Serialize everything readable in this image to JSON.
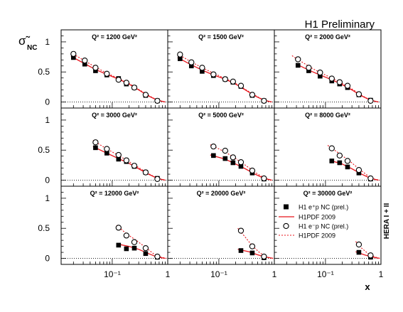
{
  "figure": {
    "title": "H1 Preliminary",
    "ylabel_sym": "σ̃",
    "ylabel_sub": "NC",
    "xlabel": "x",
    "side_label": "HERA I + II",
    "x_tick_labels": [
      "10⁻¹",
      "1"
    ],
    "y_tick_labels": [
      "0",
      "0.5",
      "1"
    ]
  },
  "legend": {
    "entries": [
      {
        "label": "H1 e⁺p NC (prel.)",
        "marker": "filled-square"
      },
      {
        "label": "H1PDF 2009",
        "line": "solid"
      },
      {
        "label": "H1 e⁻p NC (prel.)",
        "marker": "open-circle"
      },
      {
        "label": "H1PDF 2009",
        "line": "dotted"
      }
    ]
  },
  "colors": {
    "theory": "#e8141b",
    "marker": "#000000",
    "axes": "#000000"
  },
  "chart_data": {
    "type": "scatter",
    "title": "H1 Preliminary",
    "xlabel": "x",
    "ylabel": "σ̃_NC",
    "xscale": "log",
    "xlim": [
      0.012,
      1
    ],
    "ylim": [
      -0.1,
      1.2
    ],
    "grid": false,
    "legend_location": "bottom-right panel",
    "panels": [
      {
        "label": "Q² = 1200 GeV²",
        "eplus": {
          "x": [
            0.02,
            0.032,
            0.05,
            0.08,
            0.13,
            0.18,
            0.25,
            0.4,
            0.65
          ],
          "y": [
            0.74,
            0.63,
            0.52,
            0.45,
            0.39,
            0.3,
            0.24,
            0.11,
            0.02
          ]
        },
        "eminus": {
          "x": [
            0.02,
            0.032,
            0.05,
            0.08,
            0.13,
            0.18,
            0.25,
            0.4,
            0.65
          ],
          "y": [
            0.8,
            0.69,
            0.57,
            0.47,
            0.37,
            0.32,
            0.24,
            0.12,
            0.02
          ]
        },
        "fit_plus": {
          "x": [
            0.018,
            0.03,
            0.05,
            0.08,
            0.13,
            0.2,
            0.3,
            0.45,
            0.65,
            0.9
          ],
          "y": [
            0.76,
            0.65,
            0.54,
            0.46,
            0.38,
            0.3,
            0.2,
            0.1,
            0.03,
            0.0
          ]
        },
        "fit_minus": {
          "x": [
            0.018,
            0.03,
            0.05,
            0.08,
            0.13,
            0.2,
            0.3,
            0.45,
            0.65,
            0.9
          ],
          "y": [
            0.82,
            0.7,
            0.58,
            0.48,
            0.39,
            0.31,
            0.21,
            0.11,
            0.03,
            0.0
          ]
        }
      },
      {
        "label": "Q² = 1500 GeV²",
        "eplus": {
          "x": [
            0.02,
            0.032,
            0.05,
            0.08,
            0.13,
            0.18,
            0.25,
            0.4,
            0.65
          ],
          "y": [
            0.72,
            0.6,
            0.51,
            0.44,
            0.38,
            0.33,
            0.26,
            0.11,
            0.02
          ]
        },
        "eminus": {
          "x": [
            0.02,
            0.032,
            0.05,
            0.08,
            0.13,
            0.18,
            0.25,
            0.4,
            0.65
          ],
          "y": [
            0.79,
            0.66,
            0.57,
            0.46,
            0.38,
            0.34,
            0.27,
            0.12,
            0.02
          ]
        },
        "fit_plus": {
          "x": [
            0.018,
            0.03,
            0.05,
            0.08,
            0.13,
            0.2,
            0.3,
            0.45,
            0.65,
            0.9
          ],
          "y": [
            0.74,
            0.63,
            0.53,
            0.45,
            0.38,
            0.3,
            0.2,
            0.1,
            0.03,
            0.0
          ]
        },
        "fit_minus": {
          "x": [
            0.018,
            0.03,
            0.05,
            0.08,
            0.13,
            0.2,
            0.3,
            0.45,
            0.65,
            0.9
          ],
          "y": [
            0.8,
            0.68,
            0.57,
            0.48,
            0.39,
            0.31,
            0.21,
            0.11,
            0.03,
            0.0
          ]
        }
      },
      {
        "label": "Q² = 2000 GeV²",
        "eplus": {
          "x": [
            0.032,
            0.05,
            0.08,
            0.13,
            0.18,
            0.25,
            0.4,
            0.65
          ],
          "y": [
            0.61,
            0.52,
            0.43,
            0.35,
            0.3,
            0.24,
            0.12,
            0.03
          ]
        },
        "eminus": {
          "x": [
            0.032,
            0.05,
            0.08,
            0.13,
            0.18,
            0.25,
            0.4,
            0.65
          ],
          "y": [
            0.71,
            0.57,
            0.49,
            0.39,
            0.33,
            0.27,
            0.13,
            0.02
          ]
        },
        "fit_plus": {
          "x": [
            0.03,
            0.05,
            0.08,
            0.13,
            0.2,
            0.3,
            0.45,
            0.65,
            0.9
          ],
          "y": [
            0.63,
            0.53,
            0.45,
            0.37,
            0.29,
            0.2,
            0.1,
            0.03,
            0.0
          ]
        },
        "fit_minus": {
          "x": [
            0.025,
            0.04,
            0.06,
            0.1,
            0.15,
            0.22,
            0.32,
            0.45,
            0.65,
            0.9
          ],
          "y": [
            0.77,
            0.65,
            0.55,
            0.45,
            0.37,
            0.29,
            0.2,
            0.11,
            0.03,
            0.0
          ]
        }
      },
      {
        "label": "Q² = 3000 GeV²",
        "eplus": {
          "x": [
            0.05,
            0.08,
            0.13,
            0.18,
            0.25,
            0.4,
            0.65
          ],
          "y": [
            0.54,
            0.45,
            0.35,
            0.31,
            0.23,
            0.13,
            0.03
          ]
        },
        "eminus": {
          "x": [
            0.05,
            0.08,
            0.13,
            0.18,
            0.25,
            0.4,
            0.65
          ],
          "y": [
            0.63,
            0.52,
            0.42,
            0.33,
            0.24,
            0.13,
            0.02
          ]
        },
        "fit_plus": {
          "x": [
            0.045,
            0.08,
            0.13,
            0.2,
            0.3,
            0.45,
            0.65,
            0.9
          ],
          "y": [
            0.56,
            0.45,
            0.36,
            0.28,
            0.19,
            0.1,
            0.03,
            0.0
          ]
        },
        "fit_minus": {
          "x": [
            0.045,
            0.08,
            0.13,
            0.2,
            0.3,
            0.45,
            0.65,
            0.9
          ],
          "y": [
            0.66,
            0.52,
            0.41,
            0.31,
            0.21,
            0.11,
            0.03,
            0.0
          ]
        }
      },
      {
        "label": "Q² = 5000 GeV²",
        "eplus": {
          "x": [
            0.08,
            0.13,
            0.18,
            0.25,
            0.4,
            0.65
          ],
          "y": [
            0.41,
            0.36,
            0.29,
            0.23,
            0.12,
            0.02
          ]
        },
        "eminus": {
          "x": [
            0.08,
            0.13,
            0.18,
            0.25,
            0.4,
            0.65
          ],
          "y": [
            0.56,
            0.49,
            0.38,
            0.3,
            0.16,
            0.03
          ]
        },
        "fit_plus": {
          "x": [
            0.07,
            0.13,
            0.2,
            0.3,
            0.45,
            0.65,
            0.9
          ],
          "y": [
            0.42,
            0.35,
            0.27,
            0.19,
            0.1,
            0.03,
            0.0
          ]
        },
        "fit_minus": {
          "x": [
            0.07,
            0.13,
            0.2,
            0.3,
            0.45,
            0.65,
            0.9
          ],
          "y": [
            0.59,
            0.47,
            0.36,
            0.25,
            0.13,
            0.04,
            0.0
          ]
        }
      },
      {
        "label": "Q² = 8000 GeV²",
        "eplus": {
          "x": [
            0.13,
            0.18,
            0.25,
            0.4,
            0.65
          ],
          "y": [
            0.32,
            0.29,
            0.22,
            0.12,
            0.02
          ]
        },
        "eminus": {
          "x": [
            0.13,
            0.18,
            0.25,
            0.4,
            0.65
          ],
          "y": [
            0.53,
            0.41,
            0.32,
            0.17,
            0.03
          ]
        },
        "fit_plus": {
          "x": [
            0.12,
            0.2,
            0.3,
            0.45,
            0.65,
            0.9
          ],
          "y": [
            0.33,
            0.27,
            0.19,
            0.1,
            0.03,
            0.0
          ]
        },
        "fit_minus": {
          "x": [
            0.11,
            0.18,
            0.28,
            0.4,
            0.55,
            0.75,
            0.95
          ],
          "y": [
            0.58,
            0.44,
            0.31,
            0.19,
            0.09,
            0.02,
            0.0
          ]
        }
      },
      {
        "label": "Q² = 12000 GeV²",
        "eplus": {
          "x": [
            0.13,
            0.18,
            0.25,
            0.4,
            0.65
          ],
          "y": [
            0.22,
            0.16,
            0.17,
            0.08,
            0.02
          ]
        },
        "eminus": {
          "x": [
            0.13,
            0.18,
            0.25,
            0.4,
            0.65
          ],
          "y": [
            0.51,
            0.38,
            0.27,
            0.17,
            0.03
          ]
        },
        "fit_plus": {
          "x": [
            0.12,
            0.2,
            0.3,
            0.45,
            0.65,
            0.9
          ],
          "y": [
            0.24,
            0.2,
            0.15,
            0.08,
            0.02,
            0.0
          ]
        },
        "fit_minus": {
          "x": [
            0.12,
            0.18,
            0.28,
            0.4,
            0.55,
            0.75,
            0.95
          ],
          "y": [
            0.55,
            0.41,
            0.29,
            0.18,
            0.08,
            0.02,
            0.0
          ]
        }
      },
      {
        "label": "Q² = 20000 GeV²",
        "eplus": {
          "x": [
            0.25,
            0.4,
            0.65
          ],
          "y": [
            0.13,
            0.09,
            0.01
          ]
        },
        "eminus": {
          "x": [
            0.25,
            0.4,
            0.65
          ],
          "y": [
            0.46,
            0.2,
            0.03
          ]
        },
        "fit_plus": {
          "x": [
            0.22,
            0.35,
            0.5,
            0.7,
            0.95
          ],
          "y": [
            0.15,
            0.11,
            0.06,
            0.02,
            0.0
          ]
        },
        "fit_minus": {
          "x": [
            0.22,
            0.3,
            0.4,
            0.55,
            0.75,
            0.95
          ],
          "y": [
            0.5,
            0.35,
            0.21,
            0.09,
            0.02,
            0.0
          ]
        }
      },
      {
        "label": "Q² = 30000 GeV²",
        "eplus": {
          "x": [
            0.4,
            0.65
          ],
          "y": [
            0.1,
            0.02
          ]
        },
        "eminus": {
          "x": [
            0.4,
            0.65
          ],
          "y": [
            0.23,
            0.05
          ]
        },
        "fit_plus": {
          "x": [
            0.35,
            0.5,
            0.7,
            0.95
          ],
          "y": [
            0.11,
            0.06,
            0.02,
            0.0
          ]
        },
        "fit_minus": {
          "x": [
            0.35,
            0.45,
            0.6,
            0.8,
            0.95
          ],
          "y": [
            0.28,
            0.17,
            0.07,
            0.02,
            0.0
          ]
        }
      }
    ]
  }
}
